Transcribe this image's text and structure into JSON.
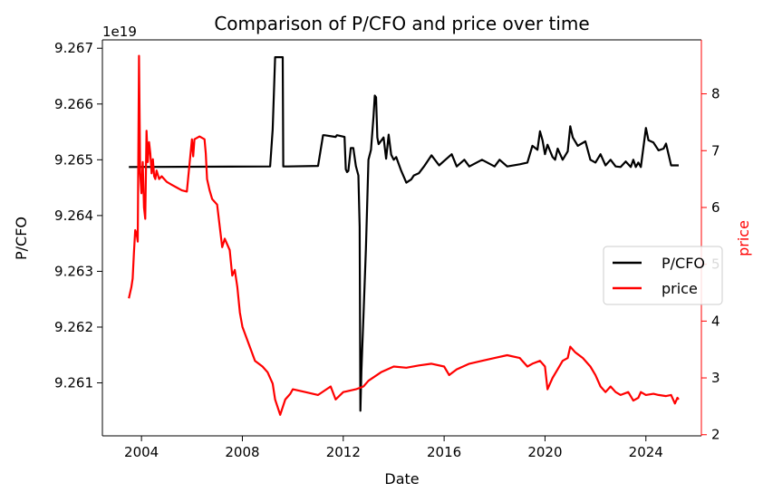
{
  "chart_data": {
    "type": "line",
    "title": "Comparison of P/CFO and price over time",
    "xlabel": "Date",
    "ylabel_left": "P/CFO",
    "ylabel_right": "price",
    "y_left_offset_text": "1e19",
    "x_range": [
      2002.45,
      2026.2
    ],
    "x_ticks": [
      2004,
      2008,
      2012,
      2016,
      2020,
      2024
    ],
    "x_tick_labels": [
      "2004",
      "2008",
      "2012",
      "2016",
      "2020",
      "2024"
    ],
    "y_left_range": [
      9.26005,
      9.26715
    ],
    "y_left_ticks": [
      9.261,
      9.262,
      9.263,
      9.264,
      9.265,
      9.266,
      9.267
    ],
    "y_left_tick_labels": [
      "9.261",
      "9.262",
      "9.263",
      "9.264",
      "9.265",
      "9.266",
      "9.267"
    ],
    "y_right_range": [
      1.98,
      8.95
    ],
    "y_right_ticks": [
      2,
      3,
      4,
      5,
      6,
      7,
      8
    ],
    "y_right_tick_labels": [
      "2",
      "3",
      "4",
      "5",
      "6",
      "7",
      "8"
    ],
    "grid": false,
    "legend_position": "center-right",
    "colors": {
      "pcfo": "#000000",
      "price": "#ff0000",
      "right_axis": "#ff0000"
    },
    "series": [
      {
        "name": "P/CFO",
        "axis": "left",
        "color": "#000000",
        "x": [
          2003.5,
          2009.1,
          2009.2,
          2009.3,
          2009.6,
          2009.62,
          2009.75,
          2009.8,
          2011.0,
          2011.2,
          2011.25,
          2011.7,
          2011.75,
          2012.05,
          2012.1,
          2012.15,
          2012.2,
          2012.3,
          2012.4,
          2012.5,
          2012.6,
          2012.65,
          2012.68,
          2012.72,
          2012.75,
          2012.8,
          2012.9,
          2013.0,
          2013.1,
          2013.2,
          2013.25,
          2013.3,
          2013.35,
          2013.4,
          2013.6,
          2013.7,
          2013.8,
          2013.9,
          2014.0,
          2014.1,
          2014.3,
          2014.5,
          2014.7,
          2014.8,
          2015.0,
          2015.2,
          2015.5,
          2015.8,
          2016.0,
          2016.3,
          2016.5,
          2016.8,
          2017.0,
          2017.5,
          2018.0,
          2018.2,
          2018.5,
          2019.0,
          2019.3,
          2019.5,
          2019.7,
          2019.8,
          2019.9,
          2020.0,
          2020.1,
          2020.3,
          2020.4,
          2020.5,
          2020.7,
          2020.9,
          2021.0,
          2021.1,
          2021.3,
          2021.6,
          2021.8,
          2022.0,
          2022.2,
          2022.4,
          2022.6,
          2022.8,
          2023.0,
          2023.2,
          2023.4,
          2023.5,
          2023.6,
          2023.7,
          2023.8,
          2024.0,
          2024.1,
          2024.3,
          2024.5,
          2024.7,
          2024.8,
          2025.0,
          2025.3
        ],
        "values": [
          9.26487,
          9.26488,
          9.26554,
          9.26684,
          9.26684,
          9.26488,
          9.26488,
          9.26488,
          9.26489,
          9.26544,
          9.26544,
          9.26541,
          9.26544,
          9.26541,
          9.26483,
          9.26478,
          9.2648,
          9.26521,
          9.26521,
          9.26489,
          9.26472,
          9.2638,
          9.2605,
          9.2612,
          9.2616,
          9.2622,
          9.2634,
          9.265,
          9.26518,
          9.26578,
          9.26615,
          9.26612,
          9.2654,
          9.26528,
          9.2654,
          9.26502,
          9.26545,
          9.26509,
          9.265,
          9.26505,
          9.2648,
          9.26459,
          9.26465,
          9.26472,
          9.26476,
          9.26488,
          9.26508,
          9.2649,
          9.26498,
          9.2651,
          9.26488,
          9.265,
          9.26488,
          9.265,
          9.26488,
          9.265,
          9.26488,
          9.26492,
          9.26495,
          9.26525,
          9.26518,
          9.26551,
          9.26535,
          9.2651,
          9.26527,
          9.26505,
          9.265,
          9.2652,
          9.265,
          9.26515,
          9.2656,
          9.2654,
          9.26525,
          9.26533,
          9.265,
          9.26495,
          9.2651,
          9.2649,
          9.265,
          9.26488,
          9.26487,
          9.26497,
          9.26487,
          9.265,
          9.26487,
          9.26495,
          9.26487,
          9.26557,
          9.26535,
          9.26531,
          9.26517,
          9.2652,
          9.26529,
          9.2649,
          9.2649
        ]
      },
      {
        "name": "price",
        "axis": "right",
        "color": "#ff0000",
        "x": [
          2003.5,
          2003.6,
          2003.65,
          2003.7,
          2003.75,
          2003.8,
          2003.85,
          2003.9,
          2003.95,
          2004.0,
          2004.05,
          2004.1,
          2004.15,
          2004.2,
          2004.25,
          2004.3,
          2004.35,
          2004.4,
          2004.45,
          2004.5,
          2004.55,
          2004.6,
          2004.7,
          2004.8,
          2004.9,
          2005.0,
          2005.2,
          2005.4,
          2005.6,
          2005.8,
          2006.0,
          2006.05,
          2006.1,
          2006.3,
          2006.5,
          2006.55,
          2006.6,
          2006.7,
          2006.8,
          2007.0,
          2007.2,
          2007.3,
          2007.5,
          2007.6,
          2007.7,
          2007.8,
          2007.9,
          2008.0,
          2008.5,
          2008.8,
          2009.0,
          2009.2,
          2009.3,
          2009.5,
          2009.7,
          2009.9,
          2010.0,
          2010.5,
          2011.0,
          2011.5,
          2011.7,
          2012.0,
          2012.5,
          2012.8,
          2013.0,
          2013.5,
          2014.0,
          2014.5,
          2015.0,
          2015.5,
          2016.0,
          2016.2,
          2016.5,
          2017.0,
          2017.5,
          2018.0,
          2018.5,
          2019.0,
          2019.3,
          2019.5,
          2019.8,
          2020.0,
          2020.1,
          2020.3,
          2020.5,
          2020.7,
          2020.9,
          2021.0,
          2021.2,
          2021.5,
          2021.8,
          2022.0,
          2022.2,
          2022.4,
          2022.6,
          2022.8,
          2023.0,
          2023.3,
          2023.5,
          2023.7,
          2023.8,
          2024.0,
          2024.3,
          2024.5,
          2024.8,
          2025.0,
          2025.15,
          2025.25,
          2025.3
        ],
        "values": [
          4.4,
          4.6,
          4.75,
          5.2,
          5.6,
          5.55,
          5.4,
          8.67,
          6.6,
          6.25,
          6.8,
          6.0,
          5.8,
          7.35,
          6.8,
          7.15,
          6.95,
          6.6,
          6.85,
          6.55,
          6.5,
          6.65,
          6.5,
          6.55,
          6.5,
          6.45,
          6.4,
          6.35,
          6.3,
          6.28,
          7.2,
          6.9,
          7.2,
          7.25,
          7.2,
          6.95,
          6.5,
          6.3,
          6.15,
          6.05,
          5.3,
          5.45,
          5.25,
          4.8,
          4.9,
          4.6,
          4.15,
          3.9,
          3.3,
          3.2,
          3.1,
          2.9,
          2.62,
          2.35,
          2.62,
          2.72,
          2.8,
          2.75,
          2.7,
          2.85,
          2.62,
          2.75,
          2.8,
          2.85,
          2.95,
          3.1,
          3.2,
          3.18,
          3.22,
          3.25,
          3.2,
          3.05,
          3.15,
          3.25,
          3.3,
          3.35,
          3.4,
          3.35,
          3.2,
          3.25,
          3.3,
          3.2,
          2.8,
          3.0,
          3.15,
          3.3,
          3.35,
          3.55,
          3.45,
          3.35,
          3.2,
          3.05,
          2.85,
          2.75,
          2.85,
          2.75,
          2.7,
          2.75,
          2.6,
          2.65,
          2.75,
          2.7,
          2.72,
          2.7,
          2.68,
          2.7,
          2.55,
          2.65,
          2.62
        ]
      }
    ]
  }
}
